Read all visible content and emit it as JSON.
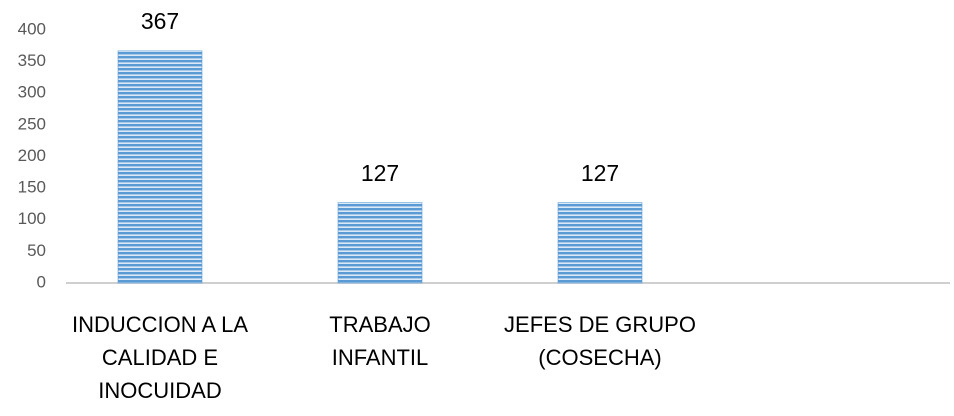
{
  "chart_data": {
    "type": "bar",
    "categories": [
      "INDUCCION A LA CALIDAD E INOCUIDAD",
      "TRABAJO INFANTIL",
      "JEFES DE GRUPO (COSECHA)",
      null
    ],
    "values": [
      367,
      127,
      127,
      null
    ],
    "color": "#5b9bd5",
    "ylim": [
      0,
      400
    ],
    "yticks": [
      0,
      50,
      100,
      150,
      200,
      250,
      300,
      350,
      400
    ],
    "grid": false
  }
}
